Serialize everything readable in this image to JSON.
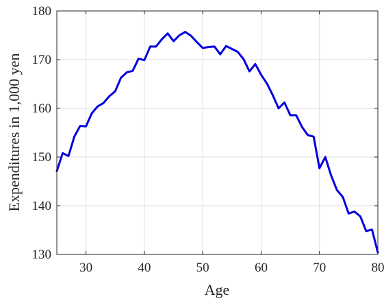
{
  "chart_data": {
    "type": "line",
    "title": "",
    "xlabel": "Age",
    "ylabel": "Expenditures in 1,000 yen",
    "xlim": [
      25,
      80
    ],
    "ylim": [
      130,
      180
    ],
    "xticks": [
      30,
      40,
      50,
      60,
      70,
      80
    ],
    "yticks": [
      130,
      140,
      150,
      160,
      170,
      180
    ],
    "xtick_labels": [
      "30",
      "40",
      "50",
      "60",
      "70",
      "80"
    ],
    "ytick_labels": [
      "130",
      "140",
      "150",
      "160",
      "170",
      "180"
    ],
    "grid": true,
    "legend": "none",
    "series": [
      {
        "color": "#0000e0",
        "x": [
          25,
          26,
          27,
          28,
          29,
          30,
          31,
          32,
          33,
          34,
          35,
          36,
          37,
          38,
          39,
          40,
          41,
          42,
          43,
          44,
          45,
          46,
          47,
          48,
          49,
          50,
          51,
          52,
          53,
          54,
          55,
          56,
          57,
          58,
          59,
          60,
          61,
          62,
          63,
          64,
          65,
          66,
          67,
          68,
          69,
          70,
          71,
          72,
          73,
          74,
          75,
          76,
          77,
          78,
          79,
          80
        ],
        "y": [
          147.1,
          150.8,
          150.2,
          154.2,
          156.4,
          156.3,
          159.0,
          160.4,
          161.1,
          162.5,
          163.5,
          166.3,
          167.4,
          167.7,
          170.2,
          169.9,
          172.7,
          172.7,
          174.2,
          175.4,
          173.8,
          175.0,
          175.7,
          174.9,
          173.6,
          172.4,
          172.6,
          172.7,
          171.1,
          172.8,
          172.2,
          171.6,
          170.1,
          167.6,
          169.1,
          166.9,
          165.1,
          162.7,
          160.0,
          161.2,
          158.6,
          158.6,
          156.2,
          154.5,
          154.2,
          147.7,
          150.0,
          146.2,
          143.2,
          141.8,
          138.4,
          138.8,
          137.8,
          134.8,
          135.1,
          130.4
        ]
      }
    ]
  }
}
